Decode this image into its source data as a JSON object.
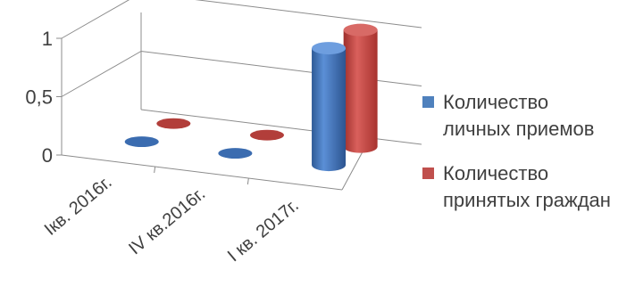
{
  "chart_data": {
    "type": "bar",
    "variant": "3d-cylinder",
    "categories": [
      "Iкв. 2016г.",
      "IV кв.2016г.",
      "I кв. 2017г."
    ],
    "series": [
      {
        "name": "Количество личных приемов",
        "name_lines": [
          "Количество",
          "личных приемов"
        ],
        "color": "#4F81BD",
        "values": [
          0,
          0,
          1
        ]
      },
      {
        "name": "Количество принятых граждан",
        "name_lines": [
          "Количество",
          "принятых граждан"
        ],
        "color": "#C0504D",
        "values": [
          0,
          0,
          1
        ]
      }
    ],
    "yticks": [
      "0",
      "0,5",
      "1"
    ],
    "ytick_values": [
      0,
      0.5,
      1
    ],
    "ylim": [
      0,
      1
    ],
    "grid": true,
    "legend": "right"
  }
}
